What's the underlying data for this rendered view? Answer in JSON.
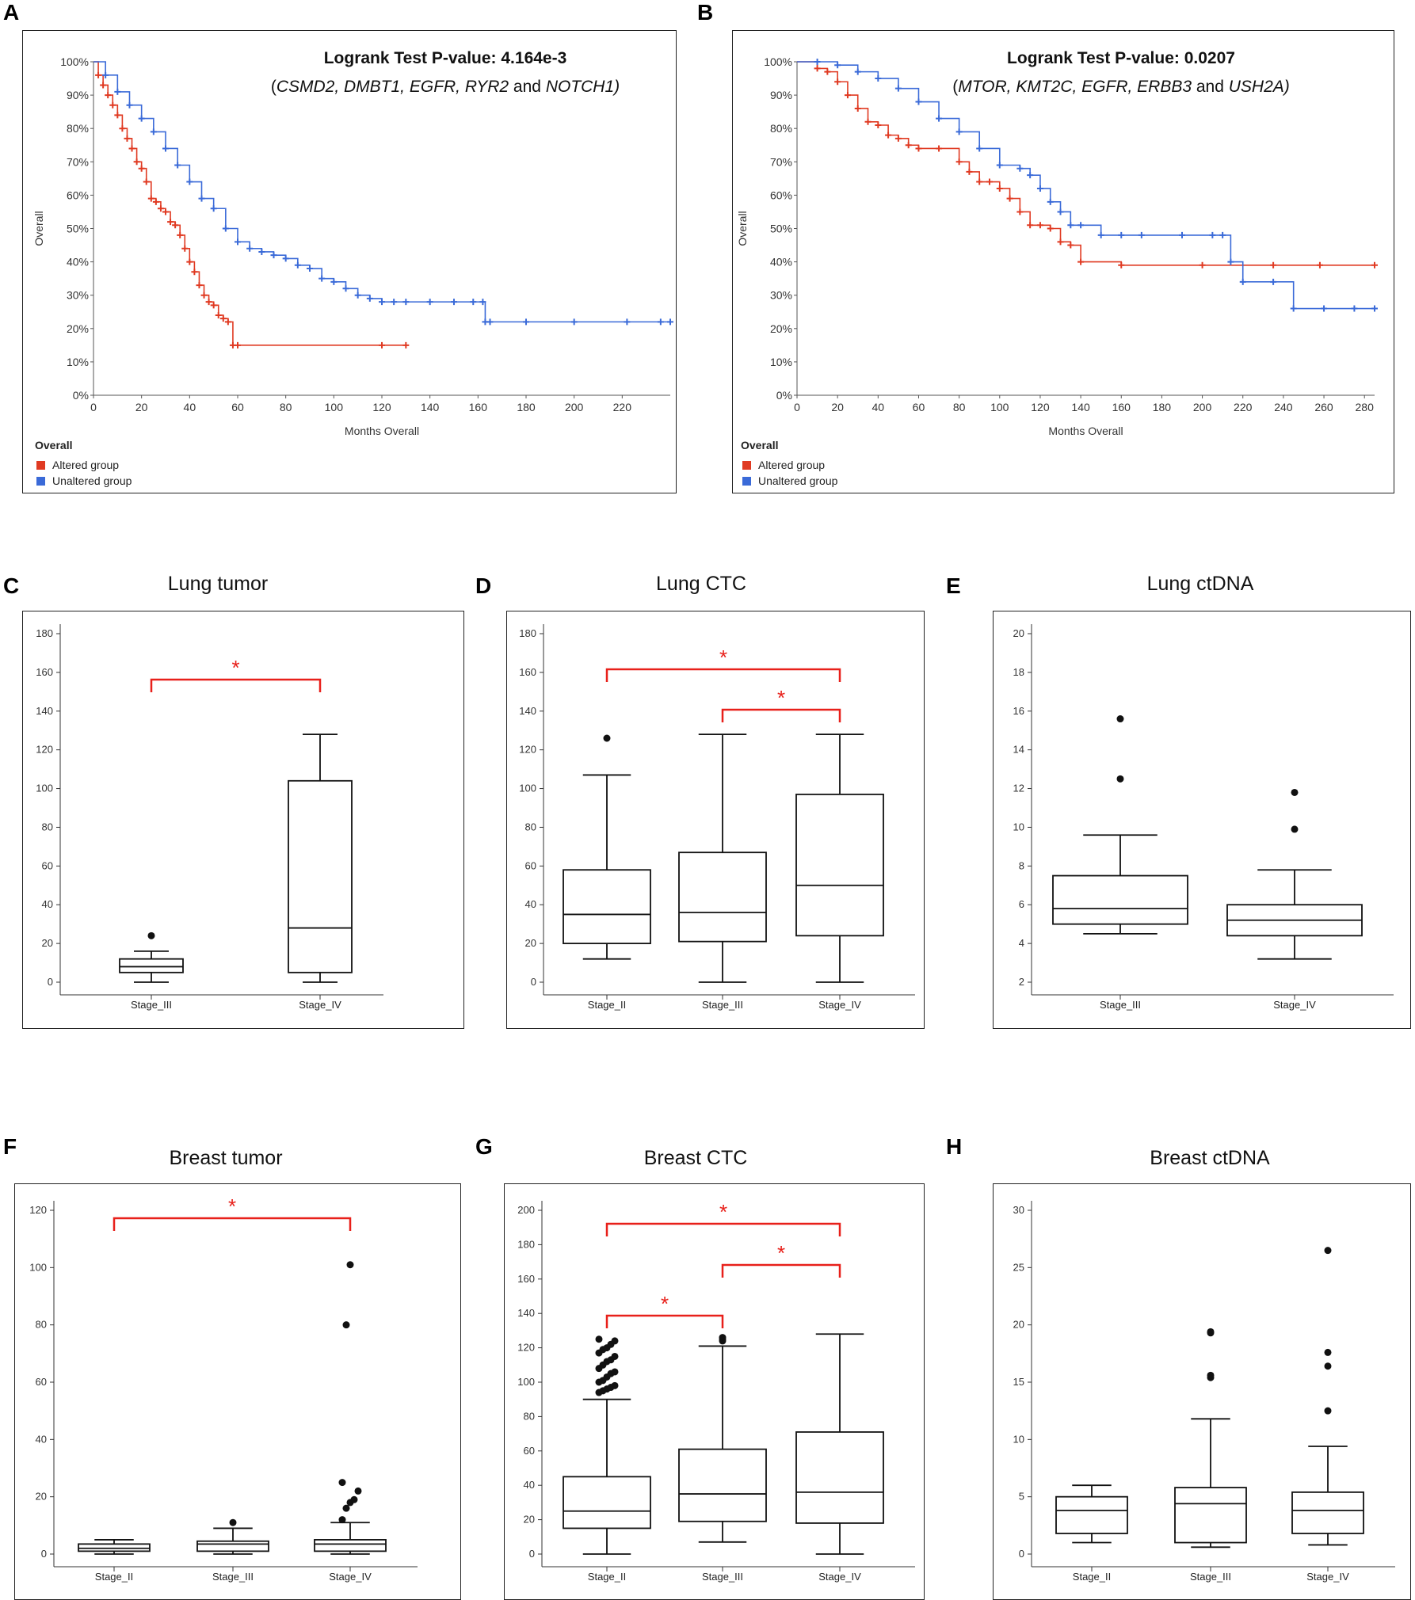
{
  "colors": {
    "altered": "#e03a22",
    "unaltered": "#3a6ad8",
    "sig": "#e8201a"
  },
  "km": [
    {
      "letter": "A",
      "title": "Logrank Test P-value: 4.164e-3",
      "genes_italic": "CSMD2, DMBT1, EGFR, RYR2",
      "genes_and": " and ",
      "genes_last": "NOTCH1)",
      "ylabel": "Overall",
      "xlabel": "Months Overall",
      "xticks": [
        "0",
        "20",
        "40",
        "60",
        "80",
        "100",
        "120",
        "140",
        "160",
        "180",
        "200",
        "220"
      ],
      "yticks": [
        "0%",
        "10%",
        "20%",
        "30%",
        "40%",
        "50%",
        "60%",
        "70%",
        "80%",
        "90%",
        "100%"
      ],
      "legend_title": "Overall",
      "legend": [
        "Altered group",
        "Unaltered group"
      ]
    },
    {
      "letter": "B",
      "title": "Logrank Test P-value: 0.0207",
      "genes_italic": "MTOR, KMT2C, EGFR, ERBB3",
      "genes_and": " and ",
      "genes_last": "USH2A)",
      "ylabel": "Overall",
      "xlabel": "Months Overall",
      "xticks": [
        "0",
        "20",
        "40",
        "60",
        "80",
        "100",
        "120",
        "140",
        "160",
        "180",
        "200",
        "220",
        "240",
        "260",
        "280"
      ],
      "yticks": [
        "0%",
        "10%",
        "20%",
        "30%",
        "40%",
        "50%",
        "60%",
        "70%",
        "80%",
        "90%",
        "100%"
      ],
      "legend_title": "Overall",
      "legend": [
        "Altered group",
        "Unaltered group"
      ]
    }
  ],
  "chart_data": [
    {
      "type": "line",
      "panel": "A",
      "title": "Logrank Test P-value: 4.164e-3",
      "xlabel": "Months Overall",
      "ylabel": "Overall",
      "xlim": [
        0,
        240
      ],
      "ylim": [
        0,
        100
      ],
      "series": [
        {
          "name": "Altered group",
          "x": [
            0,
            2,
            4,
            6,
            8,
            10,
            12,
            14,
            16,
            18,
            20,
            22,
            24,
            26,
            28,
            30,
            32,
            34,
            36,
            38,
            40,
            42,
            44,
            46,
            48,
            50,
            52,
            54,
            56,
            58,
            60,
            120,
            130
          ],
          "y": [
            100,
            96,
            93,
            90,
            87,
            84,
            80,
            77,
            74,
            70,
            68,
            64,
            59,
            58,
            56,
            55,
            52,
            51,
            48,
            44,
            40,
            37,
            33,
            30,
            28,
            27,
            24,
            23,
            22,
            15,
            15,
            15,
            15
          ]
        },
        {
          "name": "Unaltered group",
          "x": [
            0,
            5,
            10,
            15,
            20,
            25,
            30,
            35,
            40,
            45,
            50,
            55,
            60,
            65,
            70,
            75,
            80,
            85,
            90,
            95,
            100,
            105,
            110,
            115,
            120,
            125,
            130,
            140,
            150,
            158,
            162,
            163,
            165,
            180,
            200,
            222,
            236,
            240
          ],
          "y": [
            100,
            96,
            91,
            87,
            83,
            79,
            74,
            69,
            64,
            59,
            56,
            50,
            46,
            44,
            43,
            42,
            41,
            39,
            38,
            35,
            34,
            32,
            30,
            29,
            28,
            28,
            28,
            28,
            28,
            28,
            28,
            22,
            22,
            22,
            22,
            22,
            22,
            22
          ]
        }
      ]
    },
    {
      "type": "line",
      "panel": "B",
      "title": "Logrank Test P-value: 0.0207",
      "xlabel": "Months Overall",
      "ylabel": "Overall",
      "xlim": [
        0,
        285
      ],
      "ylim": [
        0,
        100
      ],
      "series": [
        {
          "name": "Altered group",
          "x": [
            0,
            10,
            15,
            20,
            25,
            30,
            35,
            40,
            45,
            50,
            55,
            60,
            70,
            80,
            85,
            90,
            95,
            100,
            105,
            110,
            115,
            120,
            125,
            130,
            135,
            140,
            160,
            200,
            235,
            258,
            285
          ],
          "y": [
            100,
            98,
            97,
            94,
            90,
            86,
            82,
            81,
            78,
            77,
            75,
            74,
            74,
            70,
            67,
            64,
            64,
            62,
            59,
            55,
            51,
            51,
            50,
            46,
            45,
            40,
            39,
            39,
            39,
            39,
            39
          ]
        },
        {
          "name": "Unaltered group",
          "x": [
            0,
            10,
            20,
            30,
            40,
            50,
            60,
            70,
            80,
            90,
            100,
            110,
            115,
            120,
            125,
            130,
            135,
            140,
            150,
            160,
            170,
            190,
            205,
            210,
            214,
            220,
            235,
            245,
            260,
            275,
            285
          ],
          "y": [
            100,
            100,
            99,
            97,
            95,
            92,
            88,
            83,
            79,
            74,
            69,
            68,
            66,
            62,
            58,
            55,
            51,
            51,
            48,
            48,
            48,
            48,
            48,
            48,
            40,
            34,
            34,
            26,
            26,
            26,
            26
          ]
        }
      ]
    },
    {
      "type": "box",
      "panel": "C",
      "title": "Lung tumor",
      "categories": [
        "Stage_III",
        "Stage_IV"
      ],
      "ylim": [
        0,
        180
      ],
      "boxes": [
        {
          "whisker_low": 0,
          "q1": 5,
          "median": 8,
          "q3": 12,
          "whisker_high": 16,
          "outliers": [
            24
          ]
        },
        {
          "whisker_low": 0,
          "q1": 5,
          "median": 28,
          "q3": 104,
          "whisker_high": 128,
          "outliers": []
        }
      ],
      "significance": [
        {
          "from": 0,
          "to": 1,
          "label": "*"
        }
      ]
    },
    {
      "type": "box",
      "panel": "D",
      "title": "Lung CTC",
      "categories": [
        "Stage_II",
        "Stage_III",
        "Stage_IV"
      ],
      "ylim": [
        0,
        180
      ],
      "boxes": [
        {
          "whisker_low": 12,
          "q1": 20,
          "median": 35,
          "q3": 58,
          "whisker_high": 107,
          "outliers": [
            126
          ]
        },
        {
          "whisker_low": 0,
          "q1": 21,
          "median": 36,
          "q3": 67,
          "whisker_high": 128,
          "outliers": []
        },
        {
          "whisker_low": 0,
          "q1": 24,
          "median": 50,
          "q3": 97,
          "whisker_high": 128,
          "outliers": []
        }
      ],
      "significance": [
        {
          "from": 0,
          "to": 2,
          "label": "*"
        },
        {
          "from": 1,
          "to": 2,
          "label": "*"
        }
      ]
    },
    {
      "type": "box",
      "panel": "E",
      "title": "Lung ctDNA",
      "categories": [
        "Stage_III",
        "Stage_IV"
      ],
      "ylim": [
        2,
        20
      ],
      "boxes": [
        {
          "whisker_low": 4.5,
          "q1": 5.0,
          "median": 5.8,
          "q3": 7.5,
          "whisker_high": 9.6,
          "outliers": [
            12.5,
            15.6
          ]
        },
        {
          "whisker_low": 3.2,
          "q1": 4.4,
          "median": 5.2,
          "q3": 6.0,
          "whisker_high": 7.8,
          "outliers": [
            9.9,
            11.8
          ]
        }
      ],
      "significance": []
    },
    {
      "type": "box",
      "panel": "F",
      "title": "Breast tumor",
      "categories": [
        "Stage_II",
        "Stage_III",
        "Stage_IV"
      ],
      "ylim": [
        0,
        120
      ],
      "boxes": [
        {
          "whisker_low": 0,
          "q1": 1,
          "median": 2,
          "q3": 3.5,
          "whisker_high": 5,
          "outliers": []
        },
        {
          "whisker_low": 0,
          "q1": 1,
          "median": 3.5,
          "q3": 4.5,
          "whisker_high": 9,
          "outliers": [
            11
          ]
        },
        {
          "whisker_low": 0,
          "q1": 1,
          "median": 3.5,
          "q3": 5,
          "whisker_high": 11,
          "outliers": [
            12,
            16,
            18,
            19,
            22,
            25,
            80,
            101
          ]
        }
      ],
      "significance": [
        {
          "from": 0,
          "to": 2,
          "label": "*"
        }
      ]
    },
    {
      "type": "box",
      "panel": "G",
      "title": "Breast CTC",
      "categories": [
        "Stage_II",
        "Stage_III",
        "Stage_IV"
      ],
      "ylim": [
        0,
        200
      ],
      "boxes": [
        {
          "whisker_low": 0,
          "q1": 15,
          "median": 25,
          "q3": 45,
          "whisker_high": 90,
          "outliers": [
            94,
            95,
            96,
            97,
            98,
            100,
            101,
            103,
            105,
            106,
            108,
            110,
            112,
            113,
            115,
            117,
            119,
            120,
            122,
            124,
            125
          ]
        },
        {
          "whisker_low": 7,
          "q1": 19,
          "median": 35,
          "q3": 61,
          "whisker_high": 121,
          "outliers": [
            124,
            125,
            126
          ]
        },
        {
          "whisker_low": 0,
          "q1": 18,
          "median": 36,
          "q3": 71,
          "whisker_high": 128,
          "outliers": []
        }
      ],
      "significance": [
        {
          "from": 0,
          "to": 1,
          "label": "*"
        },
        {
          "from": 0,
          "to": 2,
          "label": "*"
        },
        {
          "from": 1,
          "to": 2,
          "label": "*"
        }
      ]
    },
    {
      "type": "box",
      "panel": "H",
      "title": "Breast ctDNA",
      "categories": [
        "Stage_II",
        "Stage_III",
        "Stage_IV"
      ],
      "ylim": [
        0,
        30
      ],
      "boxes": [
        {
          "whisker_low": 1.0,
          "q1": 1.8,
          "median": 3.8,
          "q3": 5.0,
          "whisker_high": 6.0,
          "outliers": []
        },
        {
          "whisker_low": 0.6,
          "q1": 1.0,
          "median": 4.4,
          "q3": 5.8,
          "whisker_high": 11.8,
          "outliers": [
            15.4,
            15.6,
            19.3,
            19.4
          ]
        },
        {
          "whisker_low": 0.8,
          "q1": 1.8,
          "median": 3.8,
          "q3": 5.4,
          "whisker_high": 9.4,
          "outliers": [
            12.5,
            16.4,
            17.6,
            26.5
          ]
        }
      ],
      "significance": []
    }
  ]
}
